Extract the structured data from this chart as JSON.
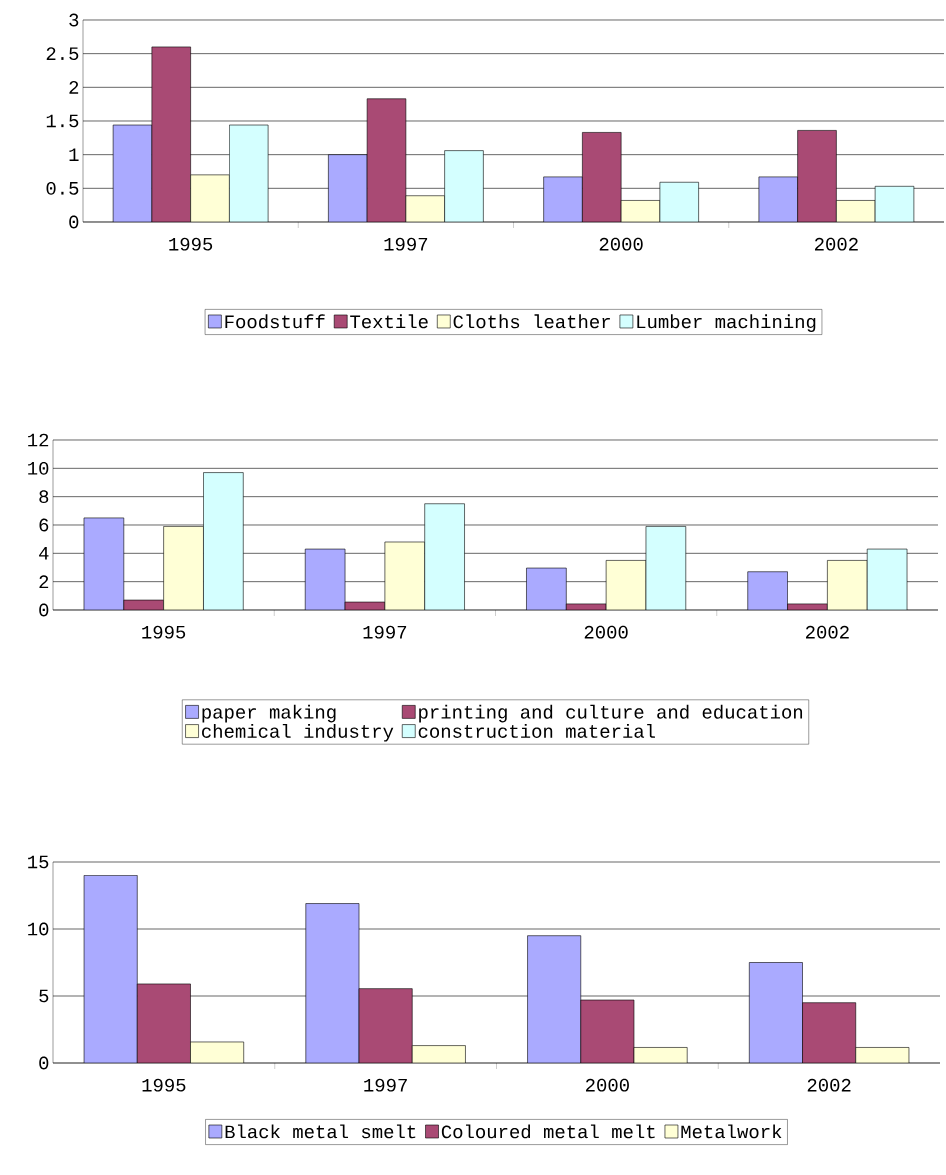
{
  "chart_data": [
    {
      "type": "bar",
      "categories": [
        "1995",
        "1997",
        "2000",
        "2002"
      ],
      "ylim": [
        0,
        3
      ],
      "yticks": [
        0,
        0.5,
        1,
        1.5,
        2,
        2.5,
        3
      ],
      "grid": "y",
      "legend": "bottom",
      "series": [
        {
          "name": "Foodstuff",
          "color": "#aaaaff",
          "values": [
            1.44,
            1.0,
            0.67,
            0.67
          ]
        },
        {
          "name": "Textile",
          "color": "#a94a74",
          "values": [
            2.6,
            1.83,
            1.33,
            1.36
          ]
        },
        {
          "name": "Cloths leather",
          "color": "#ffffd6",
          "values": [
            0.7,
            0.39,
            0.32,
            0.32
          ]
        },
        {
          "name": "Lumber machining",
          "color": "#d4ffff",
          "values": [
            1.44,
            1.06,
            0.59,
            0.53
          ]
        }
      ]
    },
    {
      "type": "bar",
      "categories": [
        "1995",
        "1997",
        "2000",
        "2002"
      ],
      "ylim": [
        0,
        12
      ],
      "yticks": [
        0,
        2,
        4,
        6,
        8,
        10,
        12
      ],
      "grid": "y",
      "legend": "bottom",
      "series": [
        {
          "name": "paper making",
          "color": "#aaaaff",
          "values": [
            6.5,
            4.3,
            2.96,
            2.7
          ]
        },
        {
          "name": "printing and culture and education",
          "color": "#a94a74",
          "values": [
            0.7,
            0.56,
            0.43,
            0.43
          ]
        },
        {
          "name": "chemical industry",
          "color": "#ffffd6",
          "values": [
            5.9,
            4.8,
            3.5,
            3.5
          ]
        },
        {
          "name": "construction material",
          "color": "#d4ffff",
          "values": [
            9.7,
            7.5,
            5.9,
            4.3
          ]
        }
      ]
    },
    {
      "type": "bar",
      "categories": [
        "1995",
        "1997",
        "2000",
        "2002"
      ],
      "ylim": [
        0,
        15
      ],
      "yticks": [
        0,
        5,
        10,
        15
      ],
      "grid": "y",
      "legend": "bottom",
      "series": [
        {
          "name": "Black metal smelt",
          "color": "#aaaaff",
          "values": [
            14.0,
            11.9,
            9.5,
            7.5
          ]
        },
        {
          "name": "Coloured metal melt",
          "color": "#a94a74",
          "values": [
            5.9,
            5.55,
            4.7,
            4.5
          ]
        },
        {
          "name": "Metalwork",
          "color": "#ffffd6",
          "values": [
            1.57,
            1.3,
            1.16,
            1.16
          ]
        }
      ]
    }
  ]
}
